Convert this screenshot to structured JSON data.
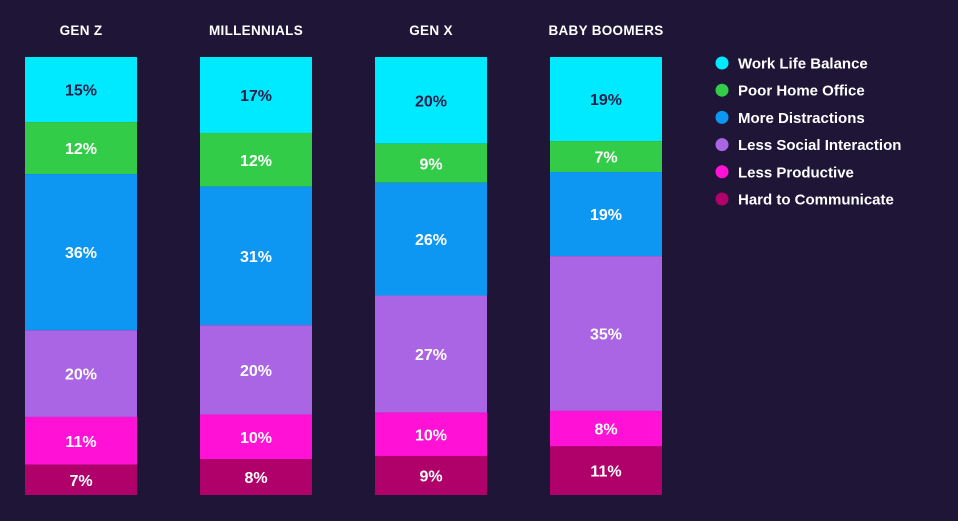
{
  "chart_data": {
    "type": "bar",
    "stacked": true,
    "normalized": true,
    "categories": [
      "GEN Z",
      "MILLENNIALS",
      "GEN X",
      "BABY BOOMERS"
    ],
    "series": [
      {
        "name": "Work Life Balance",
        "color": "#00eaff",
        "label_color": "#2a1f4a",
        "values": [
          15,
          17,
          20,
          19
        ],
        "labels": [
          "15%",
          "17%",
          "20%",
          "19%"
        ]
      },
      {
        "name": "Poor Home Office",
        "color": "#33cc48",
        "label_color": "#ffffff",
        "values": [
          12,
          12,
          9,
          7
        ],
        "labels": [
          "12%",
          "12%",
          "9%",
          "7%"
        ]
      },
      {
        "name": "More Distractions",
        "color": "#0d96f2",
        "label_color": "#ffffff",
        "values": [
          36,
          31,
          26,
          19
        ],
        "labels": [
          "36%",
          "31%",
          "26%",
          "19%"
        ]
      },
      {
        "name": "Less Social Interaction",
        "color": "#a965e3",
        "label_color": "#ffffff",
        "values": [
          20,
          20,
          27,
          35
        ],
        "labels": [
          "20%",
          "20%",
          "27%",
          "35%"
        ]
      },
      {
        "name": "Less Productive",
        "color": "#ff11d6",
        "label_color": "#ffffff",
        "values": [
          11,
          10,
          10,
          8
        ],
        "labels": [
          "11%",
          "10%",
          "10%",
          "8%"
        ]
      },
      {
        "name": "Hard to Communicate",
        "color": "#b0006a",
        "label_color": "#ffffff",
        "values": [
          7,
          8,
          9,
          11
        ],
        "labels": [
          "7%",
          "8%",
          "9%",
          "11%"
        ]
      }
    ],
    "legend_position": "top-right",
    "title": "",
    "xlabel": "",
    "ylabel": ""
  }
}
